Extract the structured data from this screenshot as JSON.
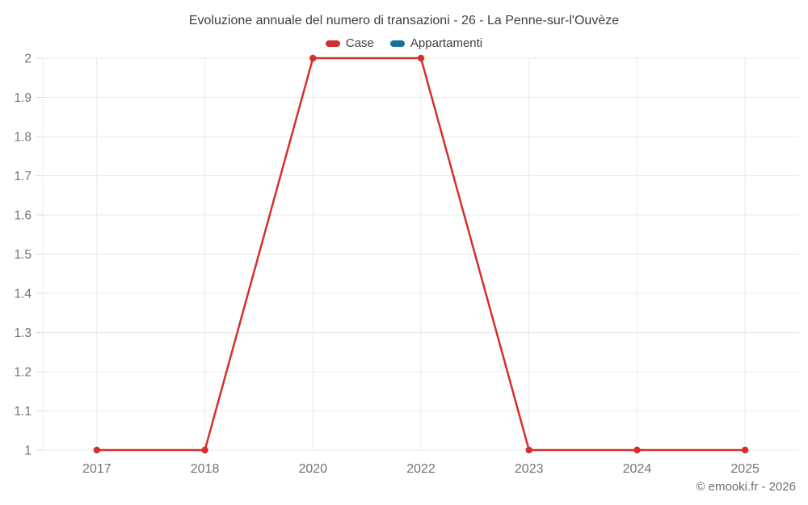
{
  "chart_data": {
    "type": "line",
    "title": "Evoluzione annuale del numero di transazioni - 26 - La Penne-sur-l'Ouvèze",
    "categories": [
      "2017",
      "2018",
      "2020",
      "2022",
      "2023",
      "2024",
      "2025"
    ],
    "series": [
      {
        "name": "Case",
        "color": "#d32f2f",
        "values": [
          1,
          1,
          2,
          2,
          1,
          1,
          1
        ]
      },
      {
        "name": "Appartamenti",
        "color": "#17709b",
        "values": []
      }
    ],
    "xlabel": "",
    "ylabel": "",
    "ylim": [
      1,
      2
    ],
    "ytick_labels": [
      "2",
      "1.9",
      "1.8",
      "1.7",
      "1.6",
      "1.5",
      "1.4",
      "1.3",
      "1.2",
      "1.1",
      "1"
    ],
    "grid": true,
    "legend_position": "top"
  },
  "footer": {
    "copyright": "© emooki.fr - 2026"
  }
}
